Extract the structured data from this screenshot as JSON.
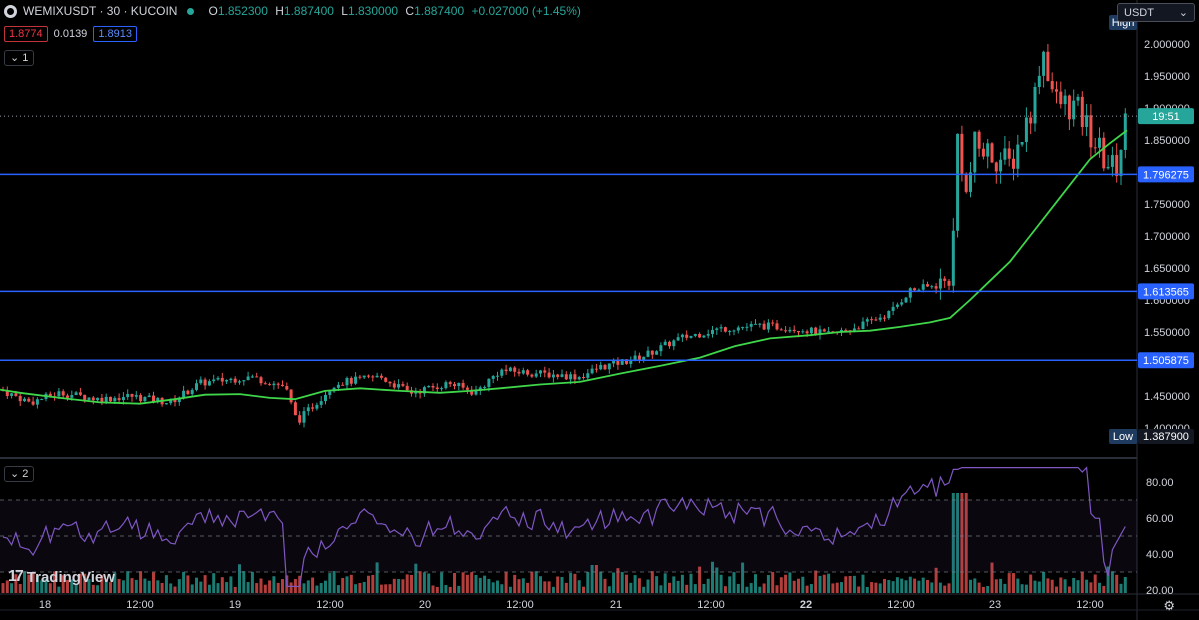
{
  "header": {
    "symbol": "WEMIXUSDT · 30 · KUCOIN",
    "ohlc": {
      "o_label": "O",
      "o": "1.852300",
      "h_label": "H",
      "h": "1.887400",
      "l_label": "L",
      "l": "1.830000",
      "c_label": "C",
      "c": "1.887400",
      "change": "+0.027000 (+1.45%)"
    },
    "bid": "1.8774",
    "spread": "0.0139",
    "ask": "1.8913",
    "main_pane_tag": "1",
    "rsi_pane_tag": "2",
    "currency": "USDT"
  },
  "price_axis": {
    "ticks": [
      "2.000000",
      "1.950000",
      "1.900000",
      "1.850000",
      "1.800000",
      "1.750000",
      "1.700000",
      "1.650000",
      "1.600000",
      "1.550000",
      "1.500000",
      "1.450000",
      "1.400000"
    ],
    "high_tag": "High",
    "low_tag": "Low",
    "low_value": "1.387900",
    "current_time": "19:51",
    "levels": [
      "1.796275",
      "1.613565",
      "1.505875"
    ]
  },
  "rsi_axis": {
    "ticks": [
      "80.00",
      "60.00",
      "40.00",
      "20.00"
    ]
  },
  "time_axis": {
    "labels": [
      "18",
      "12:00",
      "19",
      "12:00",
      "20",
      "12:00",
      "21",
      "12:00",
      "22",
      "12:00",
      "23",
      "12:00"
    ]
  },
  "branding": {
    "name": "TradingView",
    "mark": "17"
  },
  "colors": {
    "up": "#26a69a",
    "down": "#ef5350",
    "ma": "#3fd64a",
    "rsi": "#7e57c2",
    "level": "#2962ff",
    "current": "#26a69a"
  },
  "chart_data": {
    "type": "candlestick",
    "ylim": [
      1.3879,
      2.0275
    ],
    "current_price": 1.8874,
    "horizontal_levels": [
      1.796275,
      1.613565,
      1.505875
    ],
    "ma_series": [
      [
        0,
        1.46
      ],
      [
        20,
        1.455
      ],
      [
        60,
        1.447
      ],
      [
        100,
        1.44
      ],
      [
        140,
        1.438
      ],
      [
        175,
        1.445
      ],
      [
        205,
        1.452
      ],
      [
        240,
        1.453
      ],
      [
        270,
        1.447
      ],
      [
        295,
        1.445
      ],
      [
        325,
        1.458
      ],
      [
        360,
        1.462
      ],
      [
        400,
        1.458
      ],
      [
        440,
        1.455
      ],
      [
        470,
        1.458
      ],
      [
        500,
        1.462
      ],
      [
        540,
        1.468
      ],
      [
        580,
        1.472
      ],
      [
        620,
        1.485
      ],
      [
        660,
        1.497
      ],
      [
        700,
        1.51
      ],
      [
        735,
        1.528
      ],
      [
        770,
        1.54
      ],
      [
        810,
        1.545
      ],
      [
        840,
        1.55
      ],
      [
        870,
        1.552
      ],
      [
        900,
        1.558
      ],
      [
        930,
        1.565
      ],
      [
        950,
        1.572
      ],
      [
        970,
        1.6
      ],
      [
        990,
        1.63
      ],
      [
        1010,
        1.66
      ],
      [
        1030,
        1.7
      ],
      [
        1050,
        1.74
      ],
      [
        1070,
        1.78
      ],
      [
        1090,
        1.82
      ],
      [
        1110,
        1.845
      ],
      [
        1127,
        1.865
      ]
    ],
    "rsi_levels": [
      70,
      50,
      30
    ],
    "rsi_range": [
      20,
      88
    ]
  }
}
